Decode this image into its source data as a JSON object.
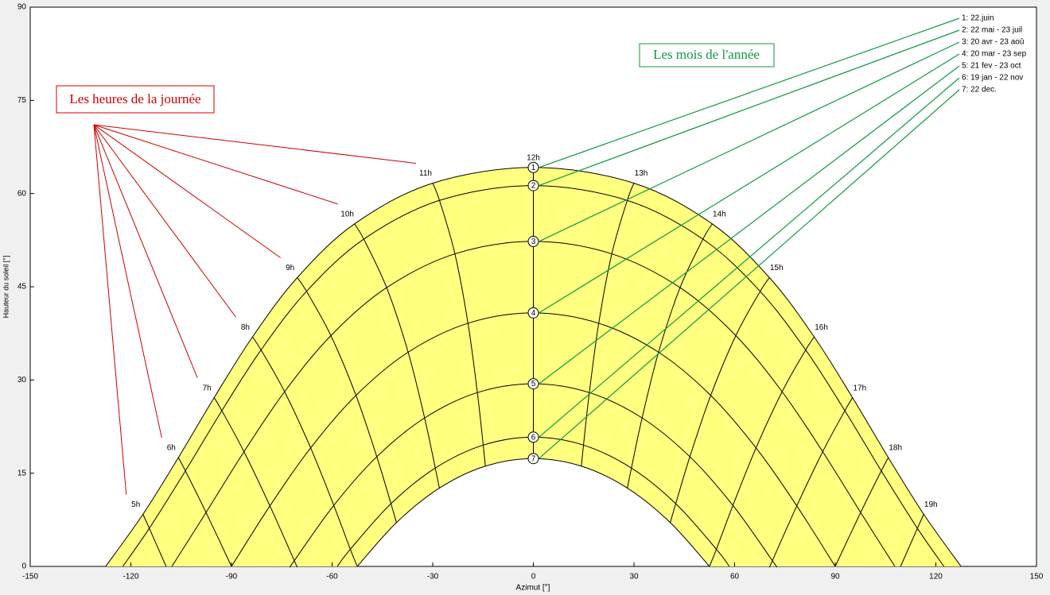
{
  "chart_data": {
    "type": "sunpath",
    "xlabel": "Azimut [°]",
    "ylabel": "Hauteur du soleil [°]",
    "xlim": [
      -150,
      150
    ],
    "xticks": [
      -150,
      -120,
      -90,
      -60,
      -30,
      0,
      30,
      60,
      90,
      120,
      150
    ],
    "ylim": [
      0,
      90
    ],
    "yticks": [
      0,
      15,
      30,
      45,
      60,
      75,
      90
    ],
    "fill": "#ffff80",
    "hours_note": "Les heures de la journée",
    "hours_note_color": "#cc0000",
    "months_note": "Les mois de l'année",
    "months_note_color": "#109a40",
    "series": [
      {
        "name": "1: 22.juin",
        "marker": "1",
        "color": "#000000",
        "x": [
          -127.5,
          -116.39,
          -105.82,
          -95.17,
          -83.73,
          -70.39,
          -53.33,
          -30.0,
          0,
          30.0,
          53.33,
          70.39,
          83.73,
          95.17,
          105.82,
          116.39,
          127.5
        ],
        "values": [
          0,
          8.39,
          17.52,
          27.15,
          36.93,
          46.47,
          55.12,
          61.67,
          64.2,
          61.67,
          55.12,
          46.47,
          36.93,
          27.15,
          17.52,
          8.39,
          0
        ]
      },
      {
        "name": "2: 22 mai - 23 juil",
        "marker": "2",
        "color": "#000000",
        "x": [
          -122.4,
          -114.5,
          -103.73,
          -92.87,
          -81.19,
          -67.63,
          -50.56,
          -27.99,
          0,
          27.99,
          50.56,
          67.63,
          81.19,
          92.87,
          103.73,
          114.5,
          122.4
        ],
        "values": [
          0,
          6.13,
          15.37,
          25.06,
          34.83,
          44.26,
          52.66,
          58.9,
          61.29,
          58.9,
          52.66,
          44.26,
          34.83,
          25.06,
          15.37,
          6.13,
          0
        ]
      },
      {
        "name": "3: 20 avr - 23 aoû",
        "marker": "3",
        "color": "#000000",
        "x": [
          -107.77,
          -97.58,
          -86.27,
          -74.17,
          -60.36,
          -43.74,
          -23.39,
          0,
          23.39,
          43.74,
          60.36,
          74.17,
          86.27,
          97.58,
          107.77
        ],
        "values": [
          0,
          8.68,
          18.46,
          28.11,
          37.14,
          44.86,
          50.3,
          52.3,
          50.3,
          44.86,
          37.14,
          28.11,
          18.46,
          8.68,
          0
        ]
      },
      {
        "name": "4: 20 mar - 23 sep",
        "marker": "4",
        "color": "#000000",
        "x": [
          -90,
          -78.54,
          -66.39,
          -52.88,
          -37.33,
          -19.49,
          0,
          19.49,
          37.33,
          52.88,
          66.39,
          78.54,
          90
        ],
        "values": [
          0,
          9.74,
          19.07,
          27.52,
          34.47,
          39.13,
          40.8,
          39.13,
          34.47,
          27.52,
          19.07,
          9.74,
          0
        ]
      },
      {
        "name": "5: 21 fev - 23 oct",
        "marker": "5",
        "color": "#000000",
        "x": [
          -72.39,
          -71.27,
          -59.5,
          -46.67,
          -32.42,
          -16.69,
          0,
          16.69,
          32.42,
          46.67,
          59.5,
          71.27,
          72.39
        ],
        "values": [
          0,
          0.92,
          9.82,
          17.65,
          23.89,
          27.97,
          29.39,
          27.97,
          23.89,
          17.65,
          9.82,
          0.92,
          0
        ]
      },
      {
        "name": "6: 19 jan - 22 nov",
        "marker": "6",
        "color": "#000000",
        "x": [
          -58.44,
          -54.57,
          -42.45,
          -29.24,
          -14.95,
          0,
          14.95,
          29.24,
          42.45,
          54.57,
          58.44
        ],
        "values": [
          0,
          2.76,
          10.1,
          15.83,
          19.52,
          20.8,
          19.52,
          15.83,
          10.1,
          2.76,
          0
        ]
      },
      {
        "name": "7: 22 dec.",
        "marker": "7",
        "color": "#000000",
        "x": [
          -52.5,
          -40.82,
          -28.03,
          -14.31,
          0,
          14.31,
          28.03,
          40.82,
          52.5
        ],
        "values": [
          0,
          7.05,
          12.6,
          16.14,
          17.36,
          16.14,
          12.6,
          7.05,
          0
        ]
      }
    ],
    "hour_lines": [
      {
        "name": "5h",
        "x": [
          -116.39,
          -114.5,
          -109.49
        ],
        "values": [
          8.39,
          6.13,
          0
        ]
      },
      {
        "name": "6h",
        "x": [
          -105.82,
          -103.73,
          -97.58,
          -90
        ],
        "values": [
          17.52,
          15.37,
          8.68,
          0
        ]
      },
      {
        "name": "7h",
        "x": [
          -95.17,
          -92.87,
          -86.27,
          -78.54,
          -71.27,
          -70.51
        ],
        "values": [
          27.15,
          25.06,
          18.46,
          9.74,
          0.92,
          0
        ]
      },
      {
        "name": "8h",
        "x": [
          -83.73,
          -81.19,
          -74.17,
          -66.39,
          -59.5,
          -54.57,
          -52.5
        ],
        "values": [
          36.93,
          34.83,
          28.11,
          19.07,
          9.82,
          2.76,
          0
        ]
      },
      {
        "name": "9h",
        "x": [
          -70.39,
          -67.63,
          -60.36,
          -52.88,
          -46.67,
          -42.45,
          -40.82
        ],
        "values": [
          46.47,
          44.26,
          37.14,
          27.52,
          17.65,
          10.1,
          7.05
        ]
      },
      {
        "name": "10h",
        "x": [
          -53.33,
          -50.56,
          -43.74,
          -37.33,
          -32.42,
          -29.24,
          -28.03
        ],
        "values": [
          55.12,
          52.66,
          44.86,
          34.47,
          23.89,
          15.83,
          12.6
        ]
      },
      {
        "name": "11h",
        "x": [
          -30.0,
          -27.99,
          -23.39,
          -19.49,
          -16.69,
          -14.95,
          -14.31
        ],
        "values": [
          61.67,
          58.9,
          50.3,
          39.13,
          27.97,
          19.52,
          16.14
        ]
      },
      {
        "name": "12h",
        "x": [
          0,
          0,
          0,
          0,
          0,
          0,
          0
        ],
        "values": [
          64.2,
          61.29,
          52.3,
          40.8,
          29.39,
          20.8,
          17.36
        ]
      },
      {
        "name": "13h",
        "x": [
          30.0,
          27.99,
          23.39,
          19.49,
          16.69,
          14.95,
          14.31
        ],
        "values": [
          61.67,
          58.9,
          50.3,
          39.13,
          27.97,
          19.52,
          16.14
        ]
      },
      {
        "name": "14h",
        "x": [
          53.33,
          50.56,
          43.74,
          37.33,
          32.42,
          29.24,
          28.03
        ],
        "values": [
          55.12,
          52.66,
          44.86,
          34.47,
          23.89,
          15.83,
          12.6
        ]
      },
      {
        "name": "15h",
        "x": [
          70.39,
          67.63,
          60.36,
          52.88,
          46.67,
          42.45,
          40.82
        ],
        "values": [
          46.47,
          44.26,
          37.14,
          27.52,
          17.65,
          10.1,
          7.05
        ]
      },
      {
        "name": "16h",
        "x": [
          83.73,
          81.19,
          74.17,
          66.39,
          59.5,
          54.57,
          52.5
        ],
        "values": [
          36.93,
          34.83,
          28.11,
          19.07,
          9.82,
          2.76,
          0
        ]
      },
      {
        "name": "17h",
        "x": [
          95.17,
          92.87,
          86.27,
          78.54,
          71.27,
          70.51
        ],
        "values": [
          27.15,
          25.06,
          18.46,
          9.74,
          0.92,
          0
        ]
      },
      {
        "name": "18h",
        "x": [
          105.82,
          103.73,
          97.58,
          90
        ],
        "values": [
          17.52,
          15.37,
          8.68,
          0
        ]
      },
      {
        "name": "19h",
        "x": [
          116.39,
          114.5,
          109.49
        ],
        "values": [
          8.39,
          6.13,
          0
        ]
      }
    ]
  }
}
